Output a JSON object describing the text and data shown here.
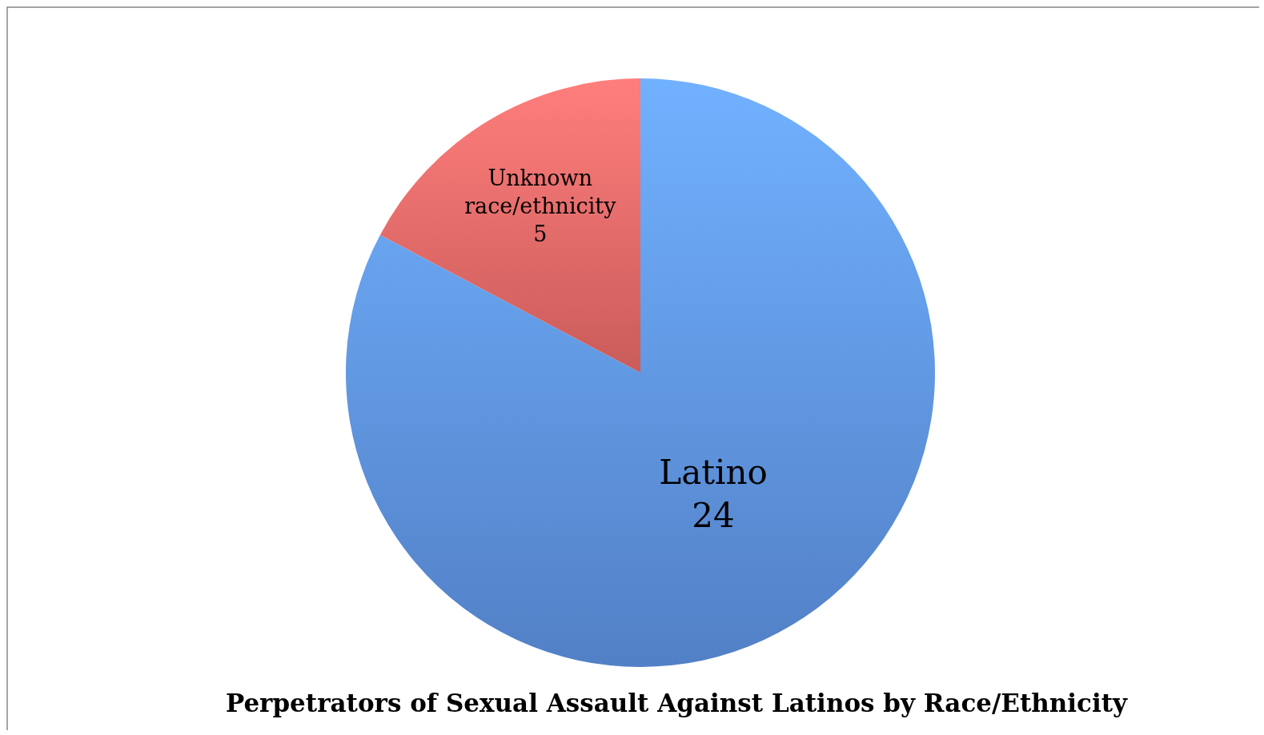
{
  "chart_data": {
    "type": "pie",
    "title": "Perpetrators of Sexual Assault Against Latinos by Race/Ethnicity",
    "categories": [
      "Latino",
      "Unknown race/ethnicity"
    ],
    "values": [
      24,
      5
    ],
    "colors": [
      "#5b8fdc",
      "#e06664"
    ],
    "data_labels": true
  }
}
